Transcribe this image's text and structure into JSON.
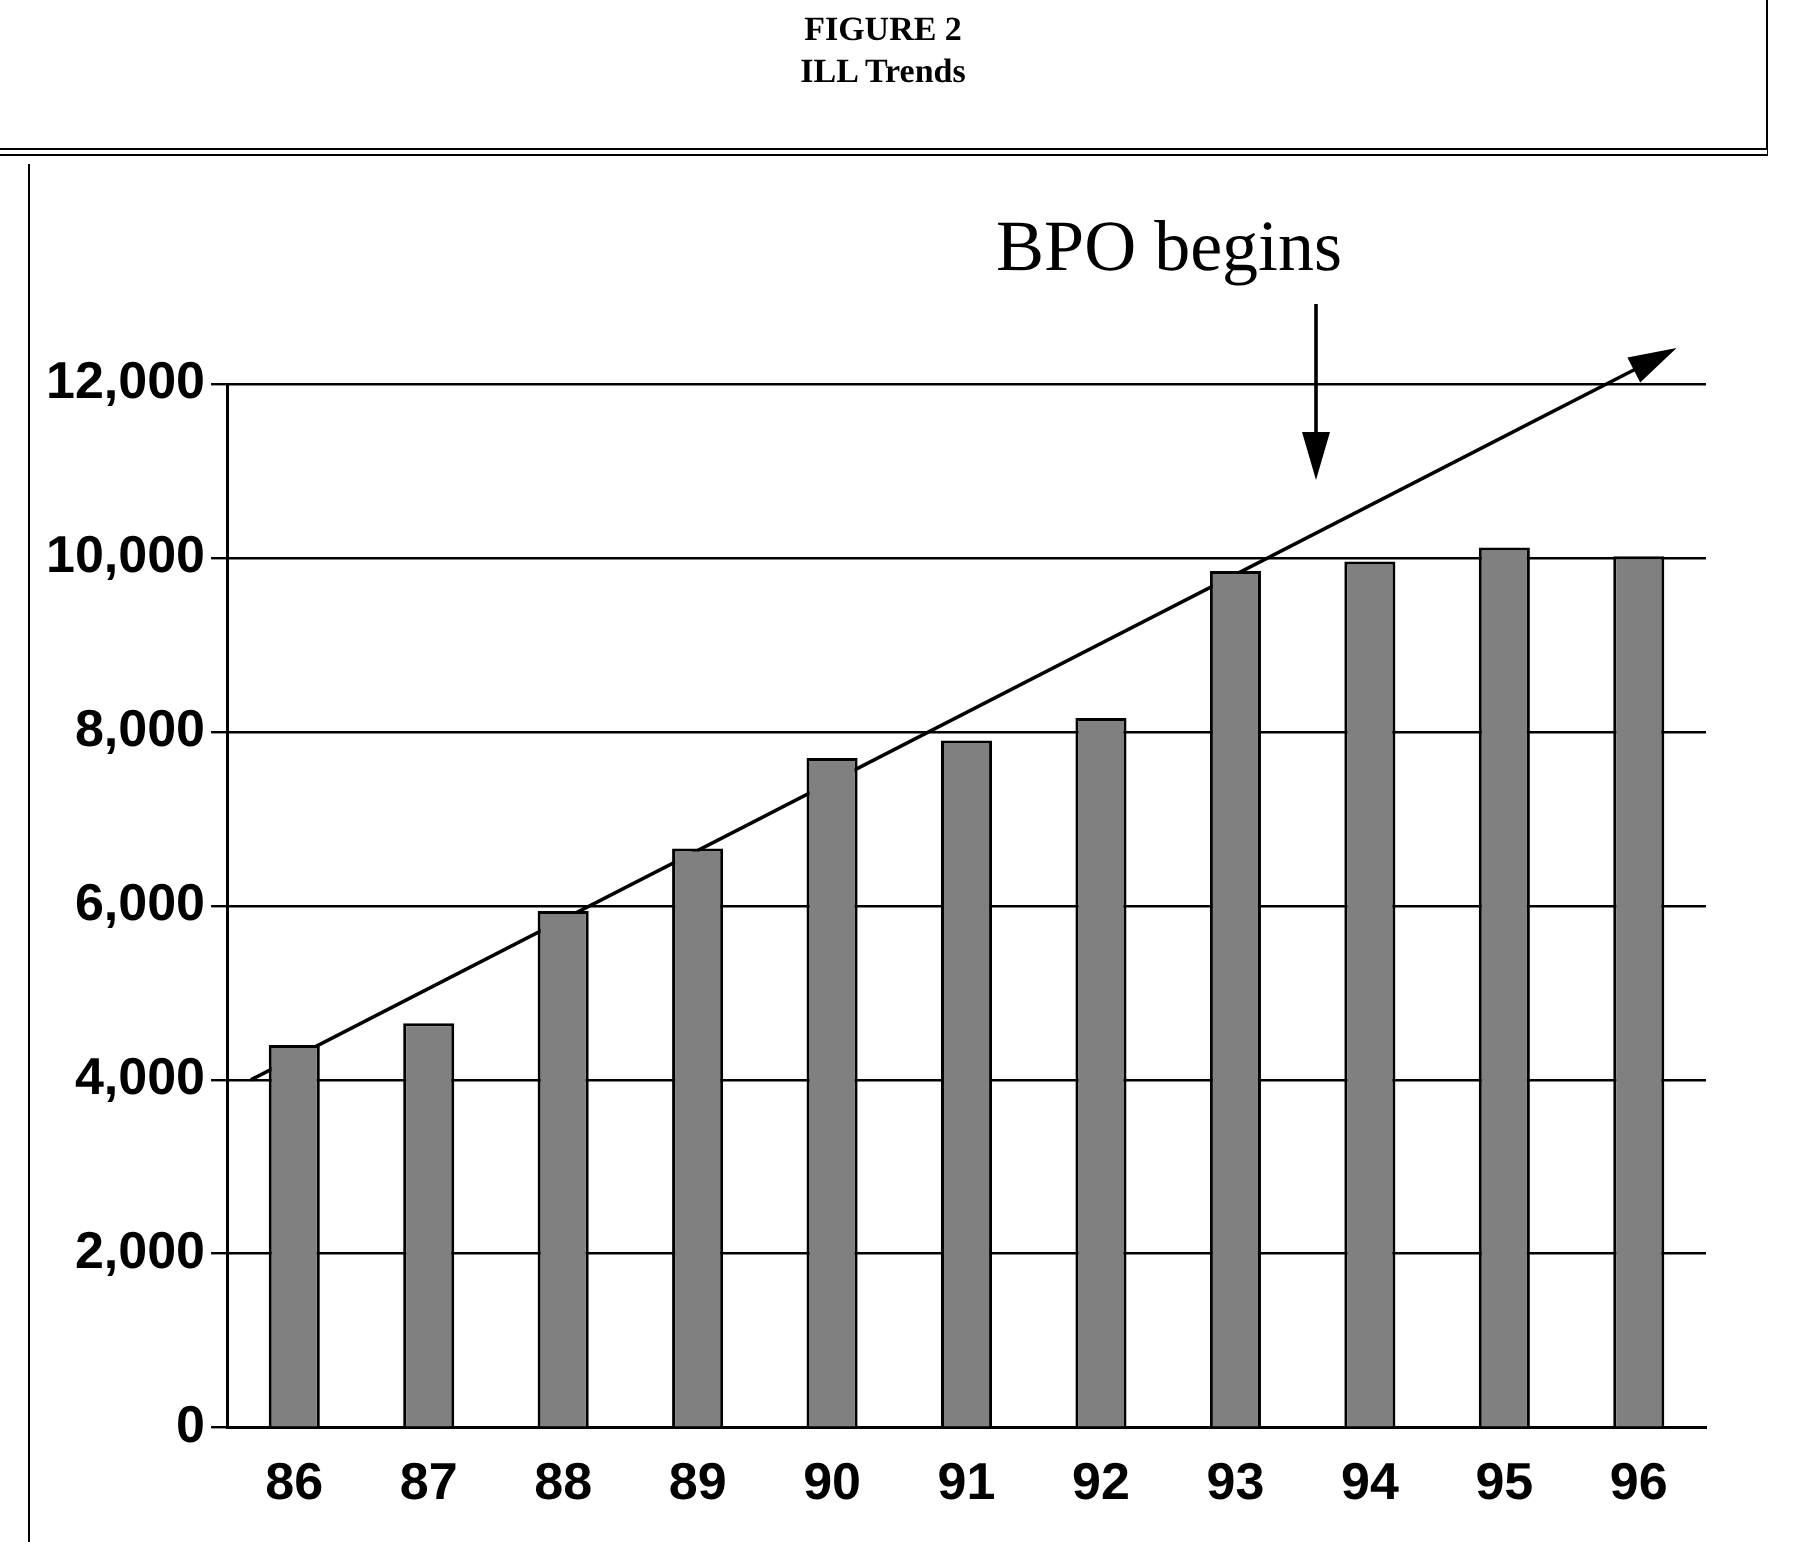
{
  "chart_data": {
    "type": "bar",
    "title": "FIGURE 2",
    "subtitle": "ILL Trends",
    "categories": [
      "86",
      "87",
      "88",
      "89",
      "90",
      "91",
      "92",
      "93",
      "94",
      "95",
      "96"
    ],
    "values": [
      4400,
      4650,
      5940,
      6660,
      7700,
      7900,
      8160,
      9850,
      9960,
      10120,
      10020
    ],
    "color": "#808080",
    "ylim": [
      0,
      12000
    ],
    "yticks": [
      0,
      {
        "value": 2000,
        "label": "2,000"
      },
      {
        "value": 4000,
        "label": "4,000"
      },
      {
        "value": 6000,
        "label": "6,000"
      },
      {
        "value": 8000,
        "label": "8,000"
      },
      {
        "value": 10000,
        "label": "10,000"
      },
      {
        "value": 12000,
        "label": "12,000"
      }
    ],
    "grid": "y",
    "annotations": [
      "BPO begins"
    ]
  }
}
